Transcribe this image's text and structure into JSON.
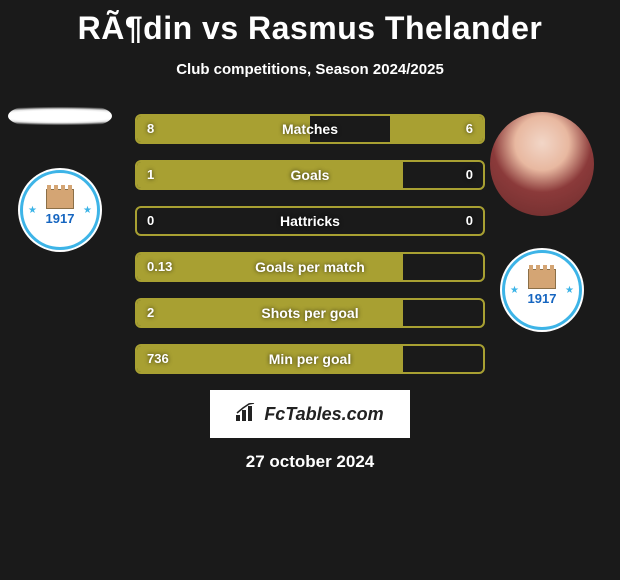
{
  "title": "RÃ¶din vs Rasmus Thelander",
  "subtitle": "Club competitions, Season 2024/2025",
  "brand": "FcTables.com",
  "date": "27 october 2024",
  "colors": {
    "bar_fill": "#a8a032",
    "bar_border": "#a8a032",
    "background": "#1a1a1a",
    "badge_ring": "#3db4e7",
    "badge_year": "#1565c0"
  },
  "badge_year": "1917",
  "chart": {
    "type": "paired-horizontal-bar",
    "max_half_pct": 50,
    "rows": [
      {
        "label": "Matches",
        "left_val": "8",
        "right_val": "6",
        "left_pct": 50,
        "right_pct": 27
      },
      {
        "label": "Goals",
        "left_val": "1",
        "right_val": "0",
        "left_pct": 77,
        "right_pct": 0
      },
      {
        "label": "Hattricks",
        "left_val": "0",
        "right_val": "0",
        "left_pct": 0,
        "right_pct": 0
      },
      {
        "label": "Goals per match",
        "left_val": "0.13",
        "right_val": "",
        "left_pct": 77,
        "right_pct": 0
      },
      {
        "label": "Shots per goal",
        "left_val": "2",
        "right_val": "",
        "left_pct": 77,
        "right_pct": 0
      },
      {
        "label": "Min per goal",
        "left_val": "736",
        "right_val": "",
        "left_pct": 77,
        "right_pct": 0
      }
    ]
  }
}
